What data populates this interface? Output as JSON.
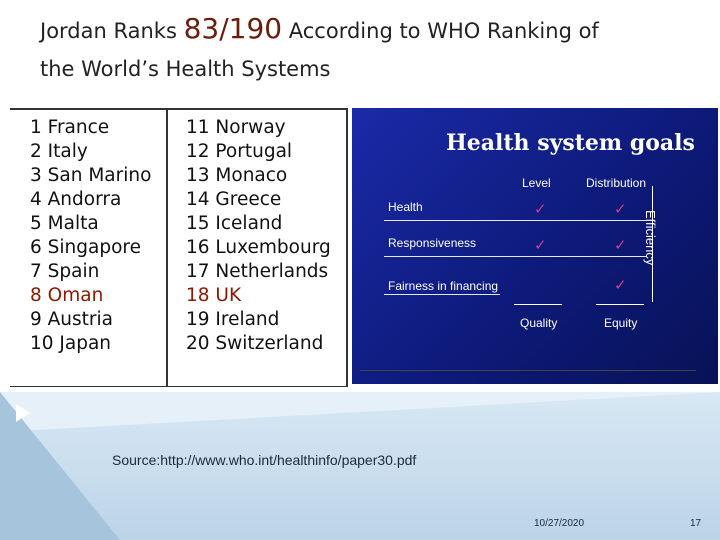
{
  "title": {
    "prefix": "Jordan Ranks ",
    "rank": "83/190",
    "line1_rest": " According to WHO Ranking of",
    "line2": "the World’s Health Systems"
  },
  "rankings": {
    "left": [
      "1 France",
      "2 Italy",
      "3 San Marino",
      "4 Andorra",
      "5 Malta",
      "6 Singapore",
      "7 Spain",
      "8 Oman",
      "9 Austria",
      "10 Japan"
    ],
    "right": [
      "11 Norway",
      "12 Portugal",
      "13 Monaco",
      "14 Greece",
      "15 Iceland",
      "16 Luxembourg",
      "17 Netherlands",
      "18 UK",
      "19 Ireland",
      "20 Switzerland"
    ],
    "highlight_color": "#8b1a00"
  },
  "goals_panel": {
    "title": "Health system goals",
    "col_level": "Level",
    "col_distribution": "Distribution",
    "row_health": "Health",
    "row_responsiveness": "Responsiveness",
    "row_fairness": "Fairness in  financing",
    "side_label": "Efficiency",
    "foot_quality": "Quality",
    "foot_equity": "Equity",
    "check_glyph": "✓",
    "check_color": "#d33a8a",
    "background_color": "#0d1a7a"
  },
  "source": "Source:http://www.who.int/healthinfo/paper30.pdf",
  "footer": {
    "date": "10/27/2020",
    "page": "17"
  }
}
